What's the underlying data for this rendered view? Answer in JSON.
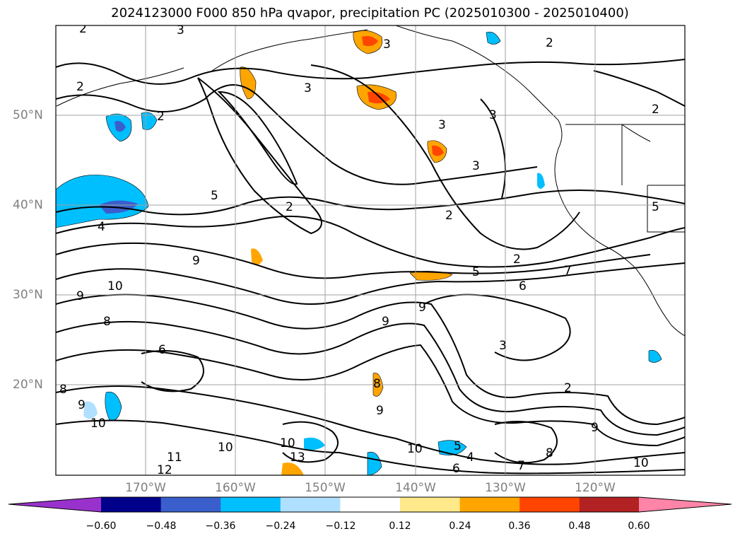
{
  "title": "2024123000 F000 850 hPa qvapor, precipitation PC (2025010300 - 2025010400)",
  "lat_labels": [
    "50°N",
    "40°N",
    "30°N",
    "20°N"
  ],
  "lon_labels": [
    "170°W",
    "160°W",
    "150°W",
    "140°W",
    "130°W",
    "120°W"
  ],
  "colorbar": {
    "ticks": [
      "−0.60",
      "−0.48",
      "−0.36",
      "−0.24",
      "−0.12",
      "0.12",
      "0.24",
      "0.36",
      "0.48",
      "0.60"
    ],
    "colors": [
      "#9932cc",
      "#00008b",
      "#3a5fcd",
      "#00bfff",
      "#b0e0ff",
      "#ffffff",
      "#ffe98a",
      "#ffa500",
      "#ff4500",
      "#b22222",
      "#ff85a8"
    ]
  },
  "contour_labels": [
    "2",
    "3",
    "3",
    "2",
    "2",
    "2",
    "3",
    "3",
    "3",
    "2",
    "4",
    "5",
    "2",
    "2",
    "3",
    "5",
    "2",
    "5",
    "7",
    "6",
    "10",
    "9",
    "9",
    "9",
    "8",
    "6",
    "8",
    "9",
    "10",
    "10",
    "11",
    "12",
    "10",
    "13",
    "9",
    "8",
    "10",
    "6",
    "5",
    "4",
    "9",
    "8",
    "7",
    "10",
    "2",
    "3",
    "9"
  ]
}
